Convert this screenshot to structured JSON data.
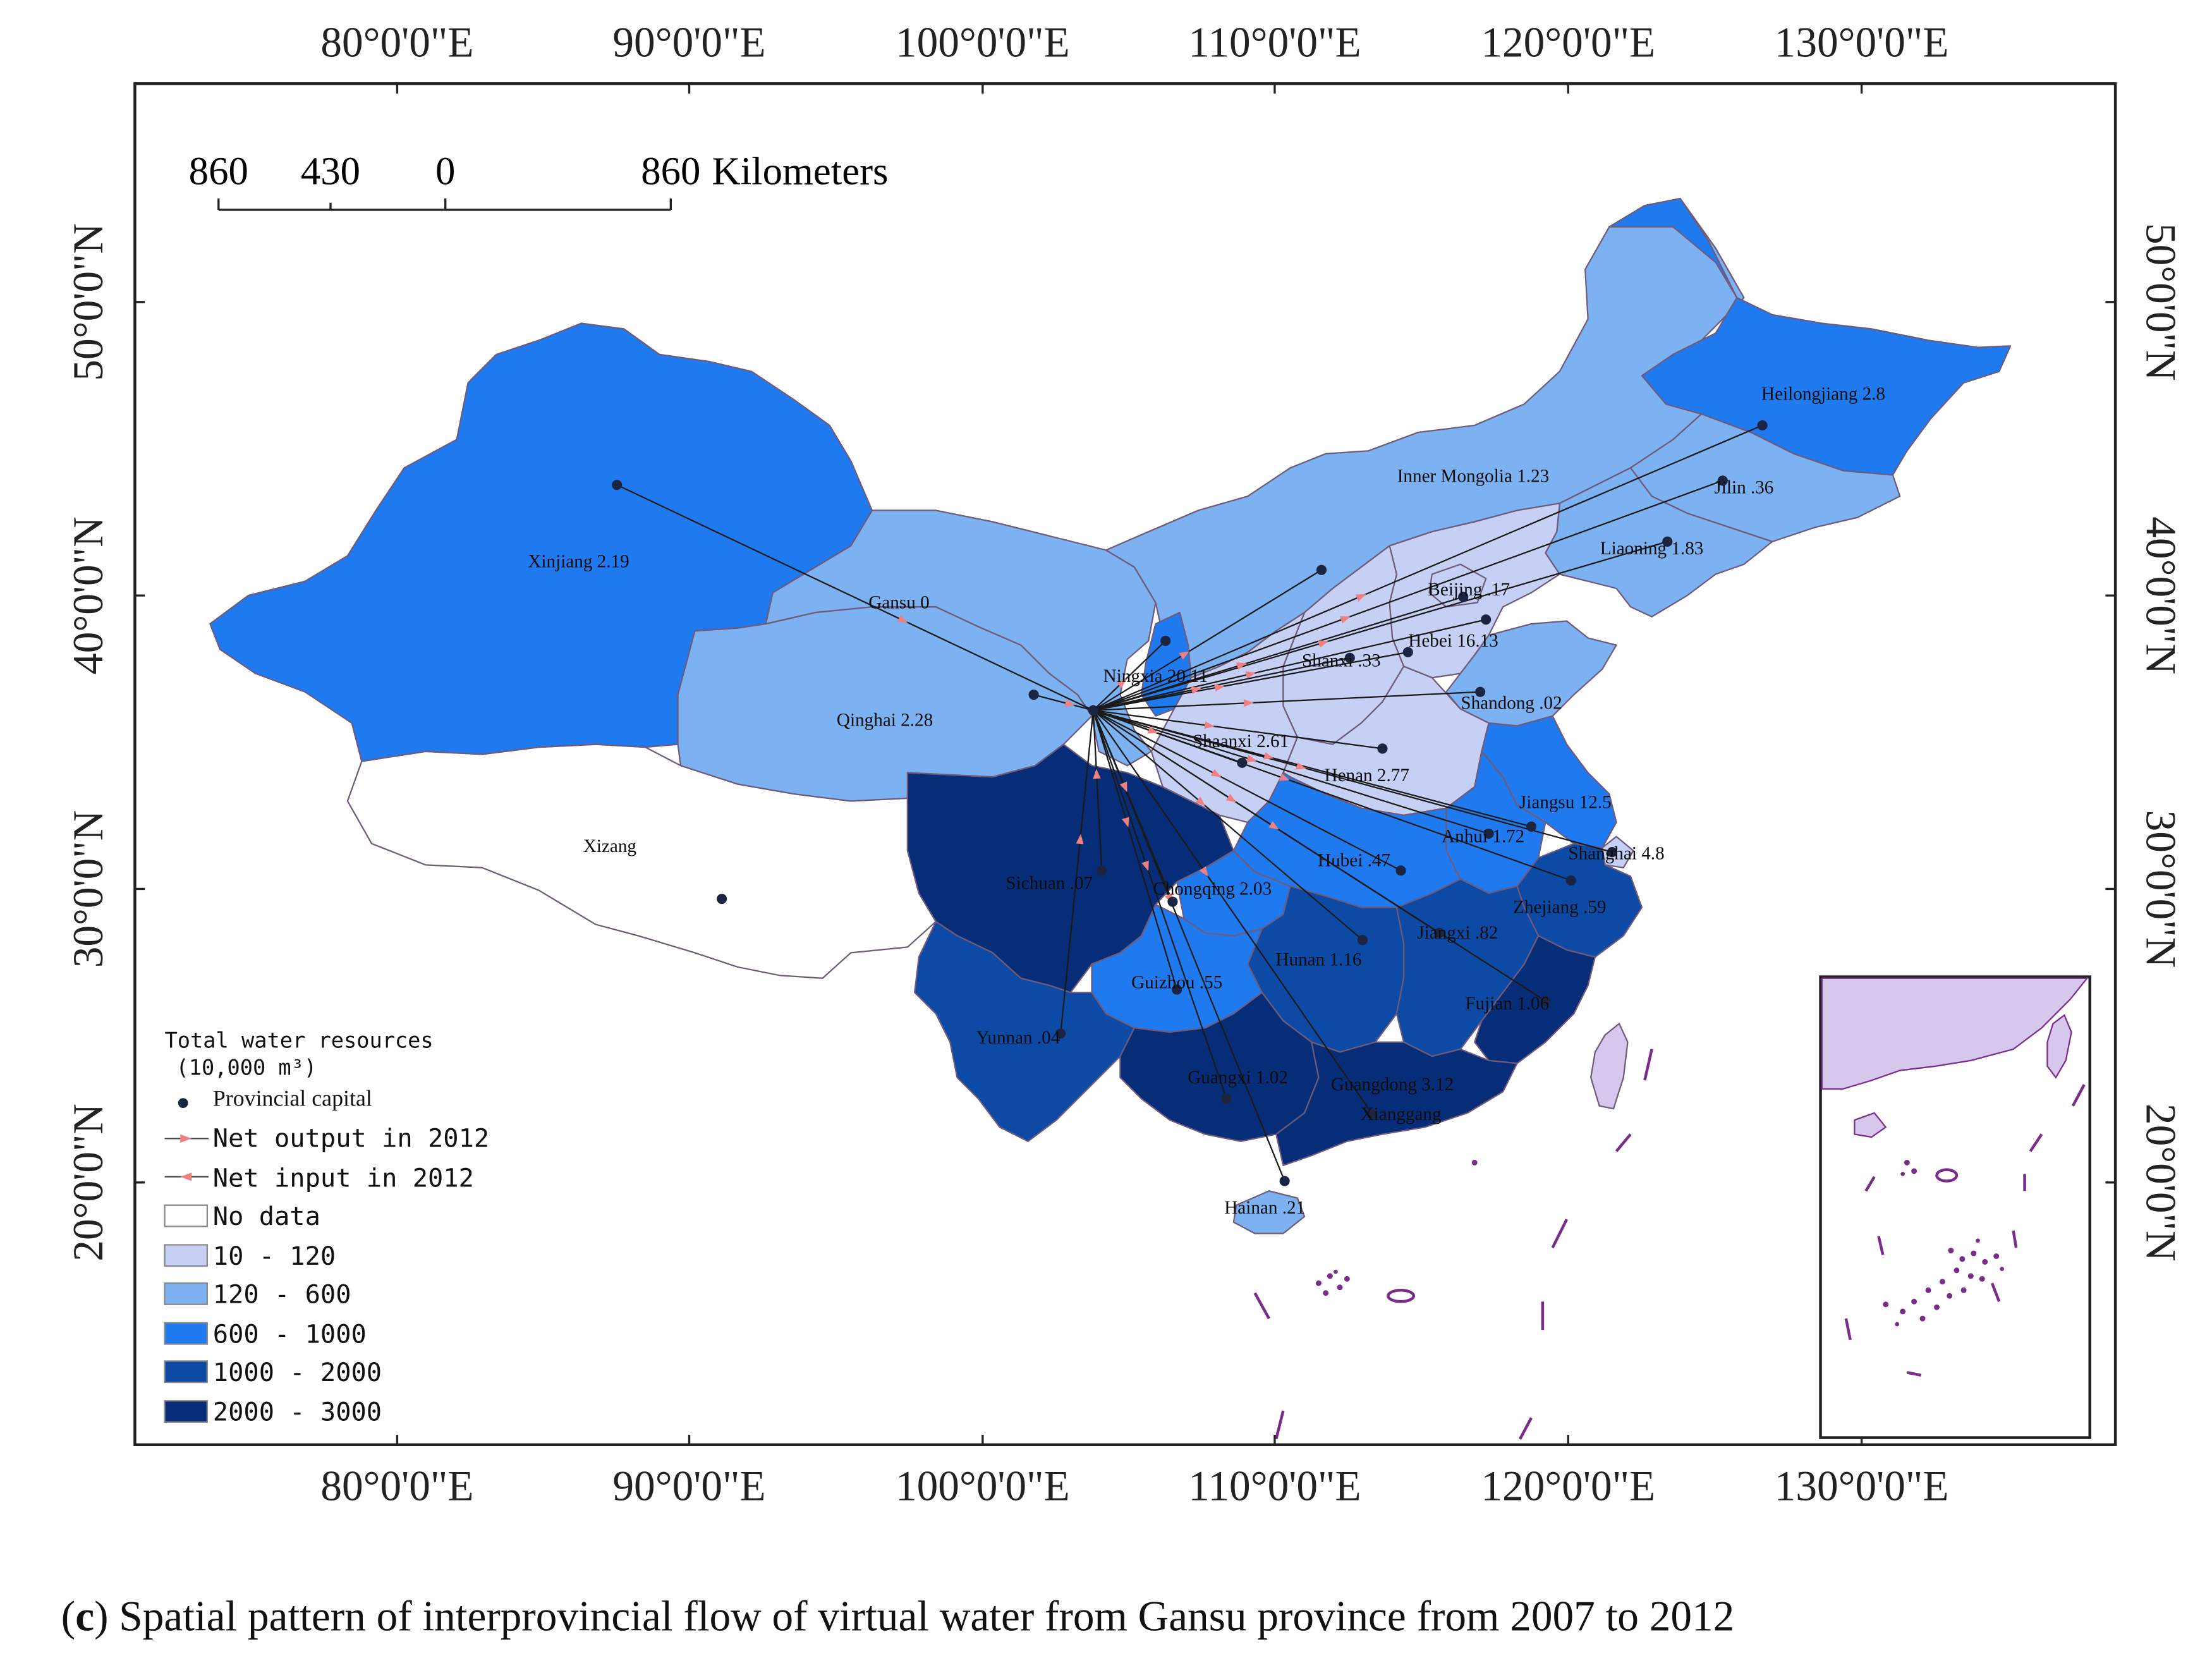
{
  "map": {
    "longitude_labels": [
      "80°0'0\"E",
      "90°0'0\"E",
      "100°0'0\"E",
      "110°0'0\"E",
      "120°0'0\"E",
      "130°0'0\"E"
    ],
    "latitude_labels": [
      "50°0'0\"N",
      "40°0'0\"N",
      "30°0'0\"N",
      "20°0'0\"N"
    ],
    "scale_bar": {
      "ticks": [
        "860",
        "430",
        "0",
        "860"
      ],
      "unit": "Kilometers"
    },
    "colors": {
      "no_data": "#ffffff",
      "class_10_120": "#c6d0f5",
      "class_120_600": "#7cb1f2",
      "class_600_1000": "#1f7af0",
      "class_1000_2000": "#0d4aa6",
      "class_2000_3000": "#072c78",
      "boundary": "#6f5a78",
      "flow_line": "#1a1a1a",
      "arrow_output": "#f08080",
      "arrow_input": "#f08080",
      "capital": "#1b2440"
    },
    "provinces": [
      {
        "name": "Xinjiang 2.19",
        "value": 2.19,
        "class": "600 - 1000"
      },
      {
        "name": "Xizang",
        "class": "No data"
      },
      {
        "name": "Qinghai 2.28",
        "value": 2.28,
        "class": "120 - 600"
      },
      {
        "name": "Gansu 0",
        "value": 0,
        "class": "120 - 600"
      },
      {
        "name": "Inner Mongolia 1.23",
        "value": 1.23,
        "class": "120 - 600"
      },
      {
        "name": "Heilongjiang 2.8",
        "value": 2.8,
        "class": "600 - 1000"
      },
      {
        "name": "Jilin .36",
        "value": 0.36,
        "class": "120 - 600"
      },
      {
        "name": "Liaoning 1.83",
        "value": 1.83,
        "class": "120 - 600"
      },
      {
        "name": "Beijing .17",
        "value": 0.17,
        "class": "10 - 120"
      },
      {
        "name": "Hebei 16.13",
        "value": 16.13,
        "class": "10 - 120"
      },
      {
        "name": "Shanxi .33",
        "value": 0.33,
        "class": "10 - 120"
      },
      {
        "name": "Ningxia 20.11",
        "value": 20.11,
        "class": "600 - 1000"
      },
      {
        "name": "Shandong .02",
        "value": 0.02,
        "class": "120 - 600"
      },
      {
        "name": "Shaanxi 2.61",
        "value": 2.61,
        "class": "120 - 600"
      },
      {
        "name": "Henan 2.77",
        "value": 2.77,
        "class": "10 - 120"
      },
      {
        "name": "Jiangsu 12.5",
        "value": 12.5,
        "class": "600 - 1000"
      },
      {
        "name": "Anhui 1.72",
        "value": 1.72,
        "class": "600 - 1000"
      },
      {
        "name": "Shanghai 4.8",
        "value": 4.8,
        "class": "10 - 120"
      },
      {
        "name": "Hubei .47",
        "value": 0.47,
        "class": "600 - 1000"
      },
      {
        "name": "Zhejiang .59",
        "value": 0.59,
        "class": "1000 - 2000"
      },
      {
        "name": "Sichuan .07",
        "value": 0.07,
        "class": "2000 - 3000"
      },
      {
        "name": "Chongqing 2.03",
        "value": 2.03,
        "class": "600 - 1000"
      },
      {
        "name": "Hunan 1.16",
        "value": 1.16,
        "class": "1000 - 2000"
      },
      {
        "name": "Jiangxi .82",
        "value": 0.82,
        "class": "1000 - 2000"
      },
      {
        "name": "Guizhou .55",
        "value": 0.55,
        "class": "600 - 1000"
      },
      {
        "name": "Fujian 1.06",
        "value": 1.06,
        "class": "2000 - 3000"
      },
      {
        "name": "Yunnan .04",
        "value": 0.04,
        "class": "1000 - 2000"
      },
      {
        "name": "Guangxi 1.02",
        "value": 1.02,
        "class": "2000 - 3000"
      },
      {
        "name": "Guangdong 3.12",
        "value": 3.12,
        "class": "2000 - 3000"
      },
      {
        "name": "Xianggang",
        "class": "2000 - 3000"
      },
      {
        "name": "Hainan .21",
        "value": 0.21,
        "class": "120 - 600"
      }
    ],
    "legend": {
      "title_line1": "Total water resources",
      "title_line2": "(10,000 m³)",
      "items": [
        {
          "label": "Provincial capital",
          "symbol": "dot"
        },
        {
          "label": "Net output in 2012",
          "symbol": "line-arrow"
        },
        {
          "label": "Net input in 2012",
          "symbol": "line-arrow"
        },
        {
          "label": "No data",
          "symbol": "box",
          "color": "#ffffff"
        },
        {
          "label": "10 - 120",
          "symbol": "box",
          "color": "#c6d0f5"
        },
        {
          "label": "120 - 600",
          "symbol": "box",
          "color": "#7cb1f2"
        },
        {
          "label": "600 - 1000",
          "symbol": "box",
          "color": "#1f7af0"
        },
        {
          "label": "1000 - 2000",
          "symbol": "box",
          "color": "#0d4aa6"
        },
        {
          "label": "2000 - 3000",
          "symbol": "box",
          "color": "#072c78"
        }
      ]
    }
  },
  "caption": {
    "letter": "c",
    "text": " Spatial pattern of interprovincial flow of virtual water from Gansu province from 2007 to 2012"
  }
}
